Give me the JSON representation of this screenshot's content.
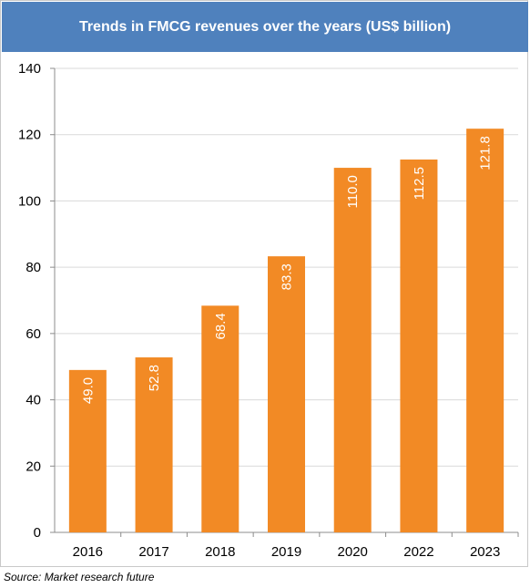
{
  "chart_data": {
    "type": "bar",
    "title": "Trends in FMCG revenues over the years (US$ billion)",
    "categories": [
      "2016",
      "2017",
      "2018",
      "2019",
      "2020",
      "2022",
      "2023"
    ],
    "values": [
      49.0,
      52.8,
      68.4,
      83.3,
      110.0,
      112.5,
      121.8
    ],
    "value_labels": [
      "49.0",
      "52.8",
      "68.4",
      "83.3",
      "110.0",
      "112.5",
      "121.8"
    ],
    "ylim": [
      0,
      140
    ],
    "yticks": [
      0,
      20,
      40,
      60,
      80,
      100,
      120,
      140
    ],
    "grid": true,
    "legend": "none",
    "colors": {
      "bar": "#f28a25",
      "title_bg": "#4f81bd",
      "grid": "#d9d9d9"
    }
  },
  "source": "Source: Market research future"
}
